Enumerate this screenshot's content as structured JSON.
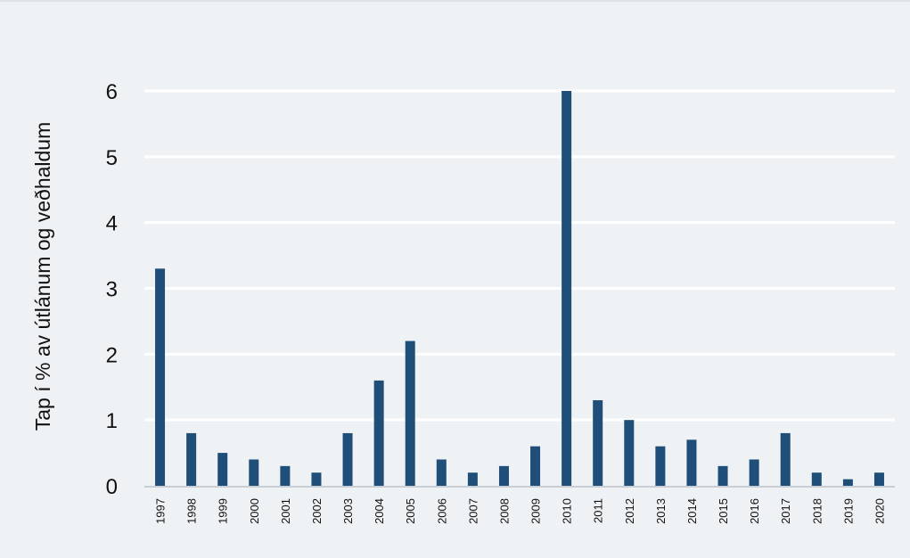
{
  "chart_data": {
    "type": "bar",
    "title": "",
    "xlabel": "",
    "ylabel": "Tap í % av útlánum og veðhaldum",
    "categories": [
      "1997",
      "1998",
      "1999",
      "2000",
      "2001",
      "2002",
      "2003",
      "2004",
      "2005",
      "2006",
      "2007",
      "2008",
      "2009",
      "2010",
      "2011",
      "2012",
      "2013",
      "2014",
      "2015",
      "2016",
      "2017",
      "2018",
      "2019",
      "2020"
    ],
    "values": [
      3.3,
      0.8,
      0.5,
      0.4,
      0.3,
      0.2,
      0.8,
      1.6,
      2.2,
      0.4,
      0.2,
      0.3,
      0.6,
      6.0,
      1.3,
      1.0,
      0.6,
      0.7,
      0.3,
      0.4,
      0.8,
      0.2,
      0.1,
      0.2
    ],
    "ylim": [
      0,
      6
    ],
    "yticks": [
      "0",
      "1",
      "2",
      "3",
      "4",
      "5",
      "6"
    ],
    "grid": true,
    "colors": {
      "bar": "#1f4e79",
      "grid": "#ffffff",
      "background": "#eff2f5"
    }
  }
}
